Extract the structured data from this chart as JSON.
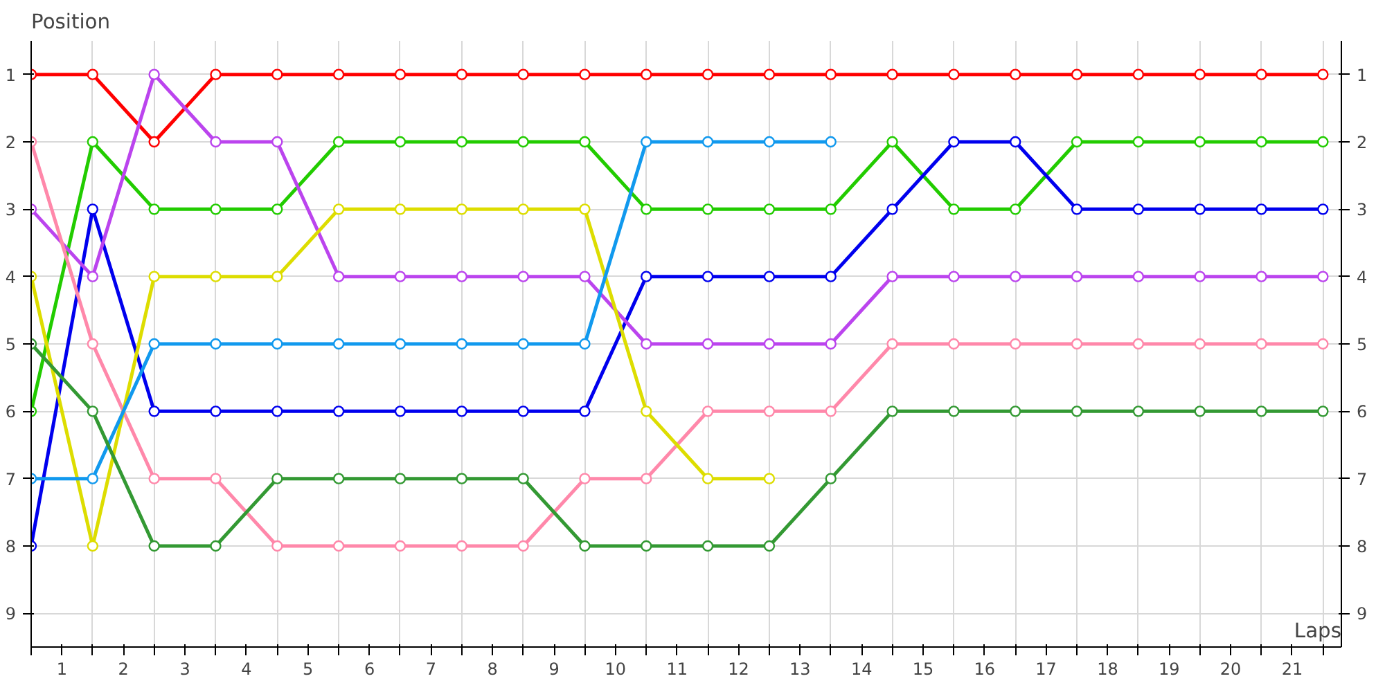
{
  "chart_data": {
    "type": "line",
    "xlabel": "Laps",
    "ylabel": "Position",
    "marker": "circle",
    "grid": true,
    "x": [
      0,
      1,
      2,
      3,
      4,
      5,
      6,
      7,
      8,
      9,
      10,
      11,
      12,
      13,
      14,
      15,
      16,
      17,
      18,
      19,
      20,
      21
    ],
    "xlim": [
      0,
      21.3
    ],
    "ylim": [
      9.5,
      0.5
    ],
    "y2lim": [
      9.5,
      0.5
    ],
    "xticks": [
      {
        "value": 0,
        "label": null
      },
      {
        "value": 0.5,
        "label": "1"
      },
      {
        "value": 1,
        "label": null
      },
      {
        "value": 1.5,
        "label": "2"
      },
      {
        "value": 2,
        "label": null
      },
      {
        "value": 2.5,
        "label": "3"
      },
      {
        "value": 3,
        "label": null
      },
      {
        "value": 3.5,
        "label": "4"
      },
      {
        "value": 4,
        "label": null
      },
      {
        "value": 4.5,
        "label": "5"
      },
      {
        "value": 5,
        "label": null
      },
      {
        "value": 5.5,
        "label": "6"
      },
      {
        "value": 6,
        "label": null
      },
      {
        "value": 6.5,
        "label": "7"
      },
      {
        "value": 7,
        "label": null
      },
      {
        "value": 7.5,
        "label": "8"
      },
      {
        "value": 8,
        "label": null
      },
      {
        "value": 8.5,
        "label": "9"
      },
      {
        "value": 9,
        "label": null
      },
      {
        "value": 9.5,
        "label": "10"
      },
      {
        "value": 10,
        "label": null
      },
      {
        "value": 10.5,
        "label": "11"
      },
      {
        "value": 11,
        "label": null
      },
      {
        "value": 11.5,
        "label": "12"
      },
      {
        "value": 12,
        "label": null
      },
      {
        "value": 12.5,
        "label": "13"
      },
      {
        "value": 13,
        "label": null
      },
      {
        "value": 13.5,
        "label": "14"
      },
      {
        "value": 14,
        "label": null
      },
      {
        "value": 14.5,
        "label": "15"
      },
      {
        "value": 15,
        "label": null
      },
      {
        "value": 15.5,
        "label": "16"
      },
      {
        "value": 16,
        "label": null
      },
      {
        "value": 16.5,
        "label": "17"
      },
      {
        "value": 17,
        "label": null
      },
      {
        "value": 17.5,
        "label": "18"
      },
      {
        "value": 18,
        "label": null
      },
      {
        "value": 18.5,
        "label": "19"
      },
      {
        "value": 19,
        "label": null
      },
      {
        "value": 19.5,
        "label": "20"
      },
      {
        "value": 20,
        "label": null
      },
      {
        "value": 20.5,
        "label": "21"
      },
      {
        "value": 21,
        "label": null
      }
    ],
    "yticks": [
      1,
      2,
      3,
      4,
      5,
      6,
      7,
      8,
      9
    ],
    "y2ticks": [
      1,
      2,
      3,
      4,
      5,
      6,
      7,
      8,
      9
    ],
    "series": [
      {
        "color": "#ff0000",
        "values": [
          1,
          1,
          2,
          1,
          1,
          1,
          1,
          1,
          1,
          1,
          1,
          1,
          1,
          1,
          1,
          1,
          1,
          1,
          1,
          1,
          1,
          1
        ]
      },
      {
        "color": "#22cc00",
        "values": [
          6,
          2,
          3,
          3,
          3,
          2,
          2,
          2,
          2,
          2,
          3,
          3,
          3,
          3,
          2,
          3,
          3,
          2,
          2,
          2,
          2,
          2
        ]
      },
      {
        "color": "#0000ee",
        "values": [
          8,
          3,
          6,
          6,
          6,
          6,
          6,
          6,
          6,
          6,
          4,
          4,
          4,
          4,
          3,
          2,
          2,
          3,
          3,
          3,
          3,
          3
        ]
      },
      {
        "color": "#bb44ee",
        "values": [
          3,
          4,
          1,
          2,
          2,
          4,
          4,
          4,
          4,
          4,
          5,
          5,
          5,
          5,
          4,
          4,
          4,
          4,
          4,
          4,
          4,
          4
        ]
      },
      {
        "color": "#ff88aa",
        "values": [
          2,
          5,
          7,
          7,
          8,
          8,
          8,
          8,
          8,
          7,
          7,
          6,
          6,
          6,
          5,
          5,
          5,
          5,
          5,
          5,
          5,
          5
        ]
      },
      {
        "color": "#dddd00",
        "values": [
          4,
          8,
          4,
          4,
          4,
          3,
          3,
          3,
          3,
          3,
          6,
          7,
          7,
          null,
          null,
          null,
          null,
          null,
          null,
          null,
          null,
          null
        ]
      },
      {
        "color": "#1199ee",
        "values": [
          7,
          7,
          5,
          5,
          5,
          5,
          5,
          5,
          5,
          5,
          2,
          2,
          2,
          2,
          null,
          null,
          null,
          null,
          null,
          null,
          null,
          null
        ]
      },
      {
        "color": "#339933",
        "values": [
          5,
          6,
          8,
          8,
          7,
          7,
          7,
          7,
          7,
          8,
          8,
          8,
          8,
          7,
          6,
          6,
          6,
          6,
          6,
          6,
          6,
          6
        ]
      }
    ]
  }
}
